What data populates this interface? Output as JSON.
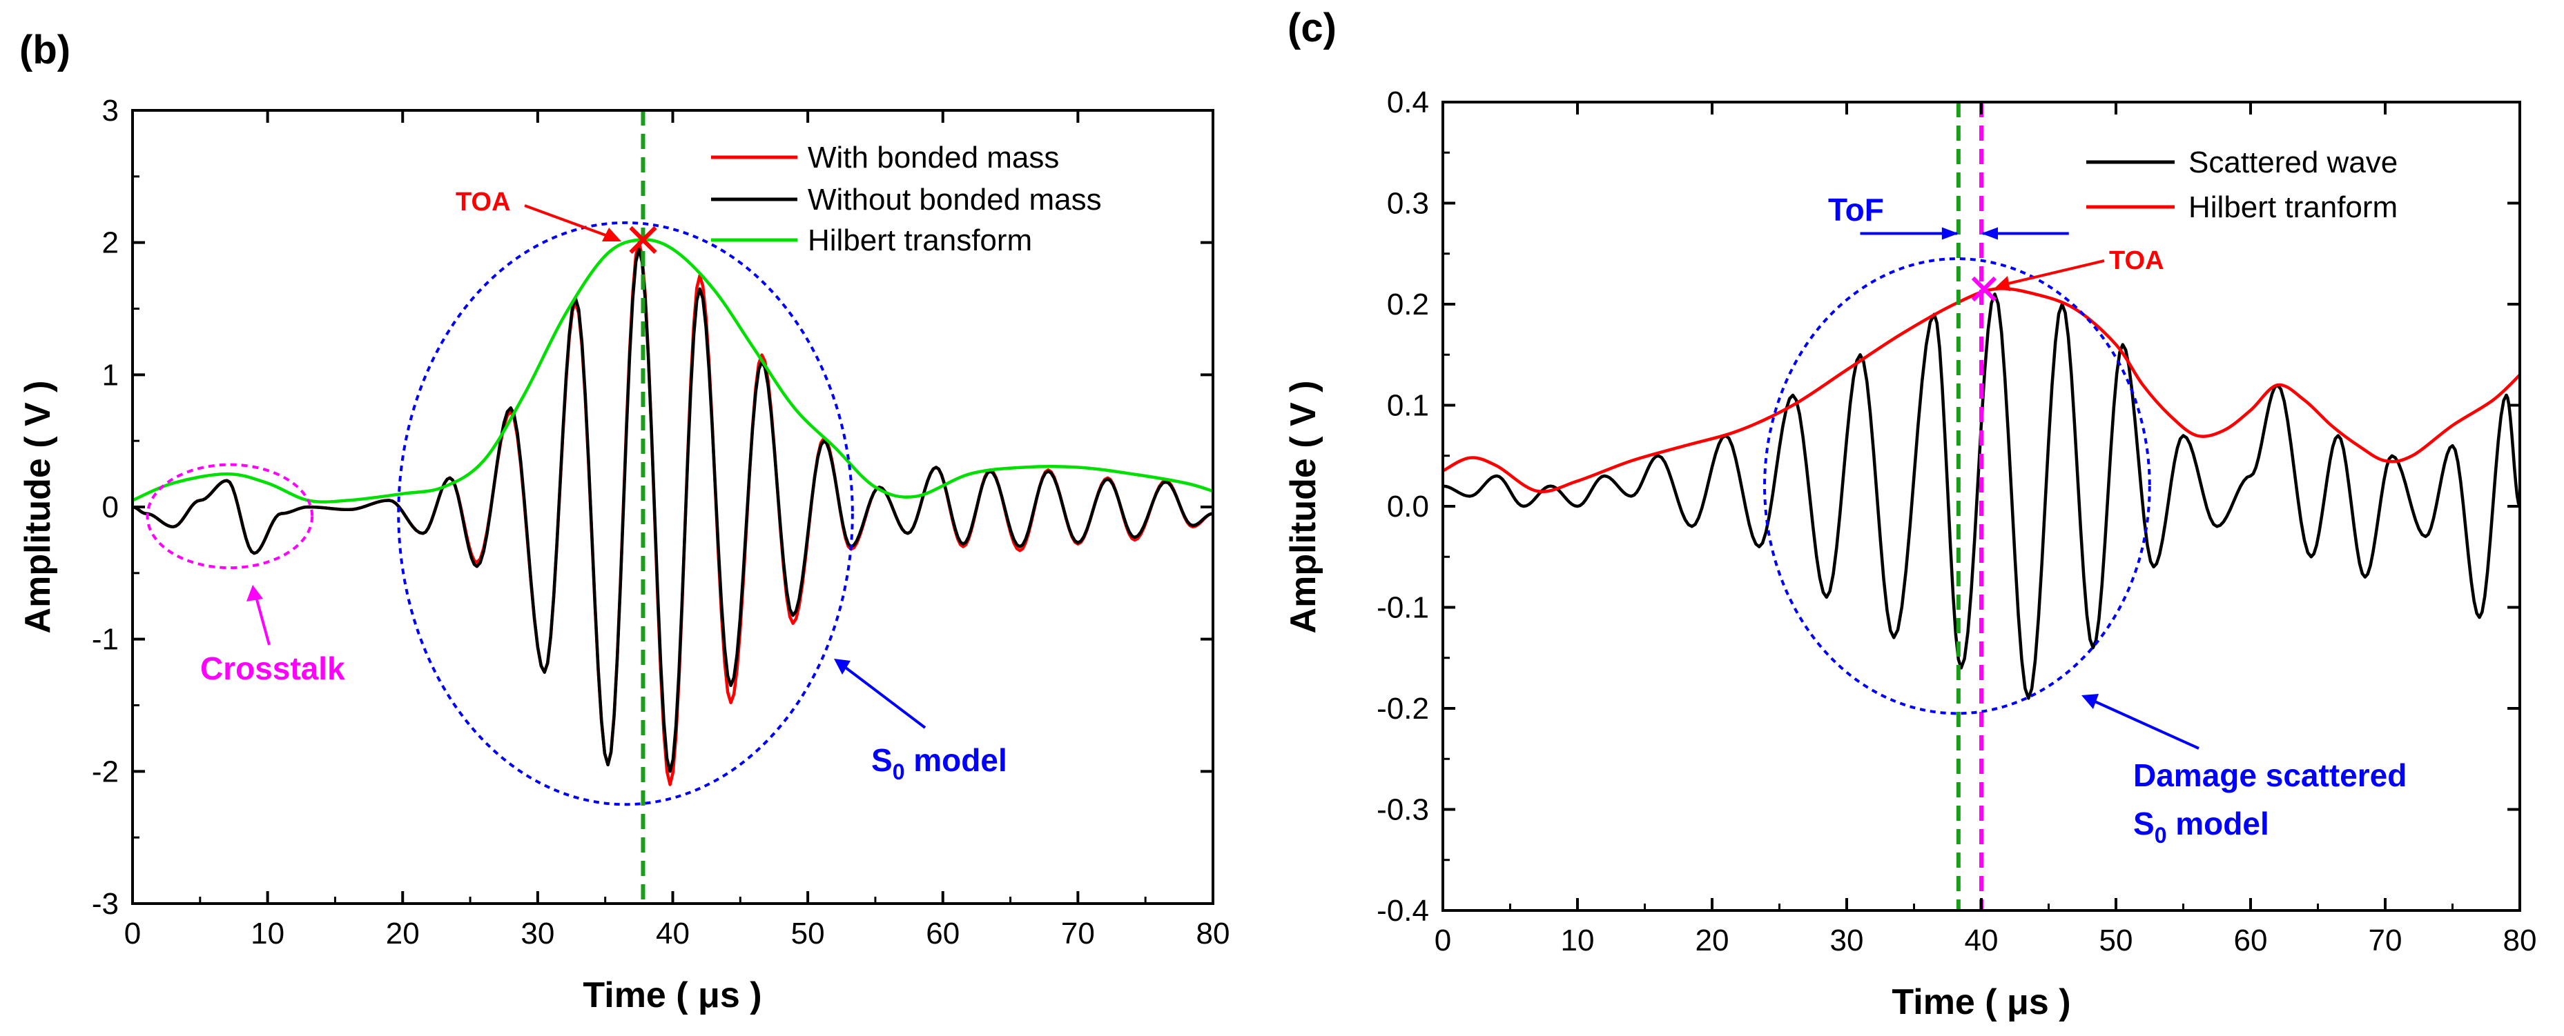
{
  "chart_data": [
    {
      "panel": "(b)",
      "type": "line",
      "xlabel": "Time ( μs )",
      "ylabel": "Amplitude ( V )",
      "xlim": [
        0,
        80
      ],
      "ylim": [
        -3,
        3
      ],
      "xticks": [
        0,
        10,
        20,
        30,
        40,
        50,
        60,
        70,
        80
      ],
      "yticks": [
        -3,
        -2,
        -1,
        0,
        1,
        2,
        3
      ],
      "legend_position": "top-right",
      "series": [
        {
          "name": "With bonded mass",
          "color": "#ff0000",
          "kind": "wave",
          "x": [
            0,
            1,
            3,
            5,
            7,
            9,
            11,
            13,
            16,
            19,
            21.5,
            23.5,
            25.5,
            28,
            30.5,
            32.8,
            35.2,
            37.5,
            39.8,
            42,
            44.3,
            46.6,
            48.9,
            51.2,
            53.2,
            55.3,
            57.4,
            59.5,
            61.5,
            63.5,
            65.7,
            67.8,
            70,
            72.2,
            74.2,
            76.5,
            78.5,
            80
          ],
          "y": [
            0,
            -0.05,
            -0.15,
            0.05,
            0.2,
            -0.35,
            -0.05,
            0,
            -0.02,
            0.05,
            -0.2,
            0.22,
            -0.42,
            0.72,
            -1.25,
            1.55,
            -1.95,
            2.0,
            -2.1,
            1.75,
            -1.48,
            1.15,
            -0.88,
            0.52,
            -0.32,
            0.15,
            -0.2,
            0.3,
            -0.3,
            0.28,
            -0.33,
            0.28,
            -0.28,
            0.22,
            -0.25,
            0.2,
            -0.15,
            -0.05
          ]
        },
        {
          "name": "Without bonded mass",
          "color": "#000000",
          "kind": "wave",
          "x": [
            0,
            1,
            3,
            5,
            7,
            9,
            11,
            13,
            16,
            19,
            21.5,
            23.5,
            25.5,
            28,
            30.5,
            32.8,
            35.2,
            37.5,
            39.8,
            42,
            44.3,
            46.6,
            48.9,
            51.2,
            53.2,
            55.3,
            57.4,
            59.5,
            61.5,
            63.5,
            65.7,
            67.8,
            70,
            72.2,
            74.2,
            76.5,
            78.5,
            80
          ],
          "y": [
            0,
            -0.05,
            -0.15,
            0.05,
            0.2,
            -0.35,
            -0.05,
            0,
            -0.02,
            0.05,
            -0.2,
            0.22,
            -0.45,
            0.75,
            -1.25,
            1.58,
            -1.95,
            1.95,
            -2.0,
            1.65,
            -1.35,
            1.1,
            -0.82,
            0.5,
            -0.3,
            0.15,
            -0.2,
            0.3,
            -0.28,
            0.27,
            -0.3,
            0.27,
            -0.27,
            0.21,
            -0.23,
            0.19,
            -0.14,
            -0.05
          ]
        },
        {
          "name": "Hilbert transform",
          "color": "#00e000",
          "kind": "envelope",
          "x": [
            0,
            3,
            7,
            10,
            13,
            16,
            20,
            23,
            26,
            29,
            32,
            35,
            37.5,
            40,
            43,
            46,
            49,
            52,
            55,
            58,
            62,
            66,
            70,
            74,
            78,
            80
          ],
          "y": [
            0.05,
            0.18,
            0.25,
            0.18,
            0.05,
            0.05,
            0.1,
            0.15,
            0.35,
            0.85,
            1.45,
            1.9,
            2.02,
            1.95,
            1.65,
            1.2,
            0.75,
            0.45,
            0.15,
            0.08,
            0.25,
            0.3,
            0.3,
            0.25,
            0.18,
            0.12
          ]
        }
      ],
      "annotations": {
        "toa_label": "TOA",
        "crosstalk_label": "Crosstalk",
        "s0_label_main": "S",
        "s0_label_sub": "0",
        "s0_label_rest": " model",
        "toa_x": 37.8,
        "toa_y": 2.02
      }
    },
    {
      "panel": "(c)",
      "type": "line",
      "xlabel": "Time ( μs )",
      "ylabel": "Amplitude ( V )",
      "xlim": [
        0,
        80
      ],
      "ylim": [
        -0.4,
        0.4
      ],
      "xticks": [
        0,
        10,
        20,
        30,
        40,
        50,
        60,
        70,
        80
      ],
      "yticks": [
        -0.4,
        -0.3,
        -0.2,
        -0.1,
        0.0,
        0.1,
        0.2,
        0.3,
        0.4
      ],
      "legend_position": "top-right",
      "series": [
        {
          "name": "Scattered wave",
          "color": "#000000",
          "kind": "wave",
          "x": [
            0,
            2,
            4,
            6,
            8,
            10,
            12,
            14,
            16,
            18.5,
            21,
            23.5,
            26,
            28.5,
            31,
            33.5,
            36.5,
            38.5,
            41,
            43.5,
            46,
            48.3,
            50.5,
            52.8,
            55,
            57.5,
            60,
            62,
            64.5,
            66.5,
            68.5,
            70.5,
            73,
            75,
            77,
            79,
            80
          ],
          "y": [
            0.02,
            0.01,
            0.03,
            0.0,
            0.02,
            0.0,
            0.03,
            0.01,
            0.05,
            -0.02,
            0.07,
            -0.04,
            0.11,
            -0.09,
            0.15,
            -0.13,
            0.19,
            -0.16,
            0.21,
            -0.19,
            0.2,
            -0.14,
            0.16,
            -0.06,
            0.07,
            -0.02,
            0.03,
            0.12,
            -0.05,
            0.07,
            -0.07,
            0.05,
            -0.03,
            0.06,
            -0.11,
            0.11,
            0.0
          ]
        },
        {
          "name": "Hilbert tranform",
          "color": "#ff0000",
          "kind": "envelope",
          "x": [
            0,
            2,
            4,
            7,
            10,
            14,
            18,
            22,
            26,
            30,
            34,
            38,
            41,
            44,
            47,
            50,
            52,
            54,
            56,
            58,
            60,
            62,
            64,
            66,
            68,
            70,
            72,
            75,
            78,
            80
          ],
          "y": [
            0.035,
            0.048,
            0.04,
            0.015,
            0.025,
            0.045,
            0.06,
            0.075,
            0.1,
            0.135,
            0.17,
            0.2,
            0.215,
            0.21,
            0.195,
            0.16,
            0.12,
            0.09,
            0.07,
            0.075,
            0.095,
            0.12,
            0.105,
            0.08,
            0.06,
            0.045,
            0.05,
            0.08,
            0.105,
            0.13
          ]
        }
      ],
      "annotations": {
        "toa_label": "TOA",
        "tof_label": "ToF",
        "scatter_label_line1": "Damage scattered",
        "s0_label_main": "S",
        "s0_label_sub": "0",
        "s0_label_rest": " model",
        "green_line_x": 38.3,
        "magenta_line_x": 40.0,
        "toa_x": 40.2,
        "toa_y": 0.215,
        "tof_y": 0.27
      }
    }
  ]
}
